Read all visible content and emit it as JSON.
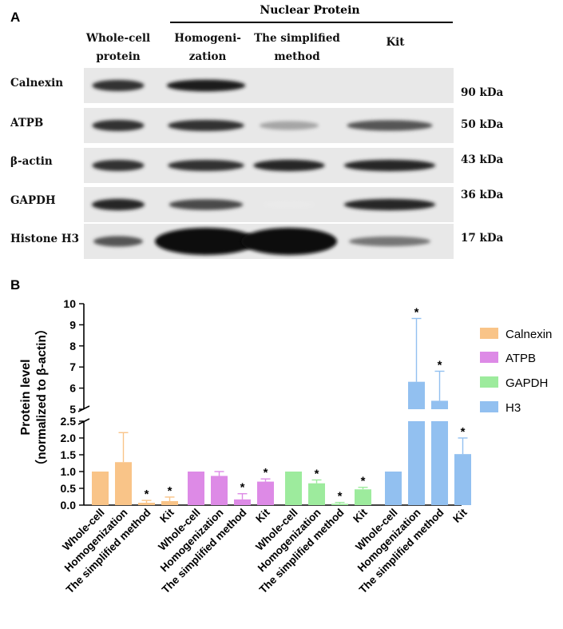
{
  "panel_a": {
    "letter": "A",
    "header": "Nuclear Protein",
    "columns": [
      [
        "Whole-cell",
        "protein"
      ],
      [
        "Homogeni-",
        "zation"
      ],
      [
        "The simplified",
        "method"
      ],
      [
        "Kit"
      ]
    ],
    "rows": [
      {
        "name": "Calnexin",
        "kda": "90 kDa",
        "bands": [
          0.85,
          0.95,
          0.0,
          0.0
        ]
      },
      {
        "name": "ATPB",
        "kda": "50 kDa",
        "bands": [
          0.85,
          0.85,
          0.35,
          0.7
        ]
      },
      {
        "name": "β-actin",
        "kda": "43 kDa",
        "bands": [
          0.85,
          0.85,
          0.9,
          0.9
        ]
      },
      {
        "name": "GAPDH",
        "kda": "36 kDa",
        "bands": [
          0.9,
          0.75,
          0.05,
          0.9
        ]
      },
      {
        "name": "Histone H3",
        "kda": "17 kDa",
        "bands": [
          0.7,
          1.0,
          1.0,
          0.55
        ]
      }
    ]
  },
  "panel_b": {
    "letter": "B"
  },
  "chart_data": {
    "type": "bar",
    "ylabel": "Protein level",
    "ylabel2": "（normalized to β-actin）",
    "categories": [
      "Whole-cell",
      "Homogenization",
      "The simplified method",
      "Kit"
    ],
    "y_ticks_lower": [
      "0.0",
      "0.5",
      "1.0",
      "1.5",
      "2.0",
      "2.5"
    ],
    "y_ticks_upper": [
      "5",
      "6",
      "7",
      "8",
      "9",
      "10"
    ],
    "ylim_lower": [
      0,
      2.5
    ],
    "ylim_upper": [
      5,
      10
    ],
    "axis_break": true,
    "series": [
      {
        "name": "Calnexin",
        "color": "#f9c488",
        "values": [
          1.0,
          1.28,
          0.07,
          0.12
        ],
        "errors": [
          0.0,
          0.88,
          0.07,
          0.12
        ],
        "significant": [
          false,
          false,
          true,
          true
        ]
      },
      {
        "name": "ATPB",
        "color": "#dd8ae6",
        "values": [
          1.0,
          0.87,
          0.17,
          0.7
        ],
        "errors": [
          0.0,
          0.13,
          0.17,
          0.08
        ],
        "significant": [
          false,
          false,
          true,
          true
        ]
      },
      {
        "name": "GAPDH",
        "color": "#9deb9d",
        "values": [
          1.0,
          0.65,
          0.04,
          0.47
        ],
        "errors": [
          0.0,
          0.1,
          0.04,
          0.06
        ],
        "significant": [
          false,
          true,
          true,
          true
        ]
      },
      {
        "name": "H3",
        "color": "#92c0f0",
        "values": [
          1.0,
          6.3,
          5.4,
          1.52
        ],
        "errors": [
          0.0,
          3.0,
          1.4,
          0.48
        ],
        "significant": [
          false,
          true,
          true,
          true
        ]
      }
    ],
    "legend_position": "right"
  }
}
